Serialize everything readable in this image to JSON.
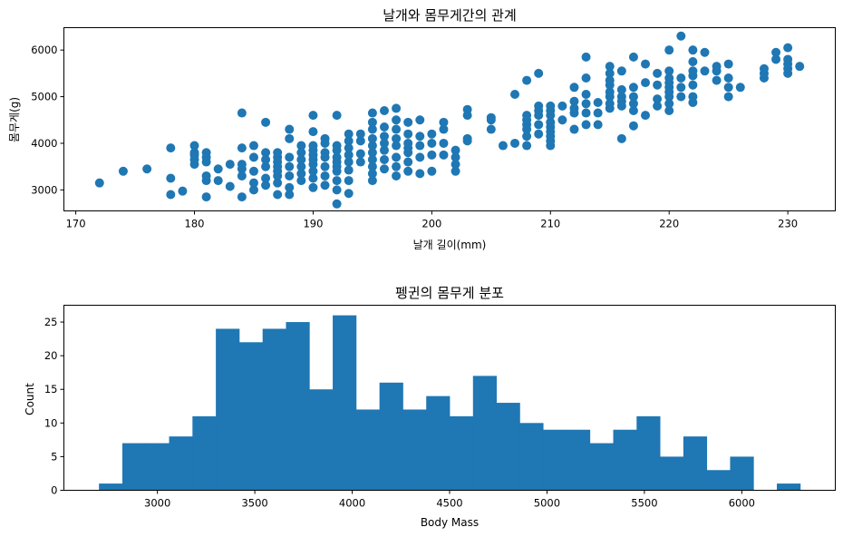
{
  "chart_data": [
    {
      "type": "scatter",
      "title": "날개와 몸무게간의 관계",
      "xlabel": "날개 길이(mm)",
      "ylabel": "몸무게(g)",
      "xlim": [
        169,
        234
      ],
      "ylim": [
        2550,
        6480
      ],
      "xticks": [
        170,
        180,
        190,
        200,
        210,
        220,
        230
      ],
      "yticks": [
        3000,
        4000,
        5000,
        6000
      ],
      "grid": false,
      "color": "#1f77b4",
      "points": [
        [
          172,
          3150
        ],
        [
          174,
          3400
        ],
        [
          176,
          3450
        ],
        [
          178,
          2900
        ],
        [
          178,
          3250
        ],
        [
          178,
          3900
        ],
        [
          179,
          2975
        ],
        [
          180,
          3550
        ],
        [
          180,
          3650
        ],
        [
          180,
          3750
        ],
        [
          180,
          3800
        ],
        [
          180,
          3950
        ],
        [
          181,
          2850
        ],
        [
          181,
          3200
        ],
        [
          181,
          3300
        ],
        [
          181,
          3600
        ],
        [
          181,
          3700
        ],
        [
          181,
          3800
        ],
        [
          182,
          3200
        ],
        [
          182,
          3450
        ],
        [
          183,
          3075
        ],
        [
          183,
          3550
        ],
        [
          184,
          2850
        ],
        [
          184,
          3300
        ],
        [
          184,
          3450
        ],
        [
          184,
          3550
        ],
        [
          184,
          3900
        ],
        [
          184,
          4650
        ],
        [
          185,
          3000
        ],
        [
          185,
          3150
        ],
        [
          185,
          3400
        ],
        [
          185,
          3700
        ],
        [
          185,
          3950
        ],
        [
          186,
          3100
        ],
        [
          186,
          3250
        ],
        [
          186,
          3500
        ],
        [
          186,
          3650
        ],
        [
          186,
          3800
        ],
        [
          186,
          4450
        ],
        [
          187,
          2900
        ],
        [
          187,
          3150
        ],
        [
          187,
          3300
        ],
        [
          187,
          3400
        ],
        [
          187,
          3500
        ],
        [
          187,
          3600
        ],
        [
          187,
          3700
        ],
        [
          187,
          3800
        ],
        [
          188,
          2900
        ],
        [
          188,
          3050
        ],
        [
          188,
          3300
        ],
        [
          188,
          3500
        ],
        [
          188,
          3700
        ],
        [
          188,
          4100
        ],
        [
          188,
          4300
        ],
        [
          189,
          3200
        ],
        [
          189,
          3350
        ],
        [
          189,
          3500
        ],
        [
          189,
          3650
        ],
        [
          189,
          3800
        ],
        [
          189,
          3950
        ],
        [
          190,
          3050
        ],
        [
          190,
          3250
        ],
        [
          190,
          3400
        ],
        [
          190,
          3550
        ],
        [
          190,
          3650
        ],
        [
          190,
          3750
        ],
        [
          190,
          3850
        ],
        [
          190,
          3950
        ],
        [
          190,
          4250
        ],
        [
          190,
          4600
        ],
        [
          191,
          3100
        ],
        [
          191,
          3300
        ],
        [
          191,
          3500
        ],
        [
          191,
          3700
        ],
        [
          191,
          3800
        ],
        [
          191,
          4000
        ],
        [
          191,
          4100
        ],
        [
          192,
          2700
        ],
        [
          192,
          3000
        ],
        [
          192,
          3200
        ],
        [
          192,
          3400
        ],
        [
          192,
          3500
        ],
        [
          192,
          3600
        ],
        [
          192,
          3700
        ],
        [
          192,
          3850
        ],
        [
          192,
          3950
        ],
        [
          192,
          4600
        ],
        [
          193,
          2925
        ],
        [
          193,
          3200
        ],
        [
          193,
          3425
        ],
        [
          193,
          3600
        ],
        [
          193,
          3750
        ],
        [
          193,
          3900
        ],
        [
          193,
          4050
        ],
        [
          193,
          4200
        ],
        [
          194,
          3600
        ],
        [
          194,
          3775
        ],
        [
          194,
          4050
        ],
        [
          194,
          4200
        ],
        [
          195,
          3200
        ],
        [
          195,
          3350
        ],
        [
          195,
          3500
        ],
        [
          195,
          3650
        ],
        [
          195,
          3800
        ],
        [
          195,
          3950
        ],
        [
          195,
          4100
        ],
        [
          195,
          4300
        ],
        [
          195,
          4450
        ],
        [
          195,
          4650
        ],
        [
          196,
          3450
        ],
        [
          196,
          3650
        ],
        [
          196,
          3850
        ],
        [
          196,
          4000
        ],
        [
          196,
          4150
        ],
        [
          196,
          4350
        ],
        [
          196,
          4700
        ],
        [
          197,
          3300
        ],
        [
          197,
          3500
        ],
        [
          197,
          3700
        ],
        [
          197,
          3950
        ],
        [
          197,
          4100
        ],
        [
          197,
          4300
        ],
        [
          197,
          4500
        ],
        [
          197,
          4750
        ],
        [
          198,
          3400
        ],
        [
          198,
          3600
        ],
        [
          198,
          3800
        ],
        [
          198,
          3900
        ],
        [
          198,
          4000
        ],
        [
          198,
          4200
        ],
        [
          198,
          4450
        ],
        [
          199,
          3350
        ],
        [
          199,
          3700
        ],
        [
          199,
          3950
        ],
        [
          199,
          4150
        ],
        [
          199,
          4500
        ],
        [
          200,
          3400
        ],
        [
          200,
          3750
        ],
        [
          200,
          4000
        ],
        [
          200,
          4200
        ],
        [
          201,
          3750
        ],
        [
          201,
          4000
        ],
        [
          201,
          4300
        ],
        [
          201,
          4450
        ],
        [
          202,
          3400
        ],
        [
          202,
          3550
        ],
        [
          202,
          3700
        ],
        [
          202,
          3850
        ],
        [
          203,
          4050
        ],
        [
          203,
          4100
        ],
        [
          203,
          4600
        ],
        [
          203,
          4725
        ],
        [
          205,
          4300
        ],
        [
          205,
          4500
        ],
        [
          205,
          4550
        ],
        [
          206,
          3950
        ],
        [
          207,
          4000
        ],
        [
          207,
          5050
        ],
        [
          208,
          3950
        ],
        [
          208,
          4150
        ],
        [
          208,
          4300
        ],
        [
          208,
          4400
        ],
        [
          208,
          4500
        ],
        [
          208,
          4600
        ],
        [
          208,
          5350
        ],
        [
          209,
          4200
        ],
        [
          209,
          4400
        ],
        [
          209,
          4600
        ],
        [
          209,
          4700
        ],
        [
          209,
          4800
        ],
        [
          209,
          5500
        ],
        [
          210,
          3950
        ],
        [
          210,
          4050
        ],
        [
          210,
          4150
        ],
        [
          210,
          4250
        ],
        [
          210,
          4350
        ],
        [
          210,
          4450
        ],
        [
          210,
          4600
        ],
        [
          210,
          4700
        ],
        [
          210,
          4800
        ],
        [
          211,
          4500
        ],
        [
          211,
          4800
        ],
        [
          212,
          4300
        ],
        [
          212,
          4650
        ],
        [
          212,
          4750
        ],
        [
          212,
          4900
        ],
        [
          212,
          5200
        ],
        [
          213,
          4400
        ],
        [
          213,
          4650
        ],
        [
          213,
          4850
        ],
        [
          213,
          5050
        ],
        [
          213,
          5400
        ],
        [
          213,
          5850
        ],
        [
          214,
          4400
        ],
        [
          214,
          4650
        ],
        [
          214,
          4875
        ],
        [
          215,
          4750
        ],
        [
          215,
          4850
        ],
        [
          215,
          5000
        ],
        [
          215,
          5100
        ],
        [
          215,
          5250
        ],
        [
          215,
          5350
        ],
        [
          215,
          5500
        ],
        [
          215,
          5650
        ],
        [
          216,
          4100
        ],
        [
          216,
          4800
        ],
        [
          216,
          4900
        ],
        [
          216,
          5000
        ],
        [
          216,
          5150
        ],
        [
          216,
          5550
        ],
        [
          217,
          4375
        ],
        [
          217,
          4700
        ],
        [
          217,
          4850
        ],
        [
          217,
          5000
        ],
        [
          217,
          5200
        ],
        [
          217,
          5850
        ],
        [
          218,
          4600
        ],
        [
          218,
          5300
        ],
        [
          218,
          5700
        ],
        [
          219,
          4800
        ],
        [
          219,
          4950
        ],
        [
          219,
          5250
        ],
        [
          219,
          5500
        ],
        [
          220,
          4700
        ],
        [
          220,
          4850
        ],
        [
          220,
          5000
        ],
        [
          220,
          5100
        ],
        [
          220,
          5200
        ],
        [
          220,
          5300
        ],
        [
          220,
          5400
        ],
        [
          220,
          5550
        ],
        [
          220,
          6000
        ],
        [
          221,
          5000
        ],
        [
          221,
          5200
        ],
        [
          221,
          5400
        ],
        [
          221,
          6300
        ],
        [
          222,
          4875
        ],
        [
          222,
          5000
        ],
        [
          222,
          5250
        ],
        [
          222,
          5450
        ],
        [
          222,
          5550
        ],
        [
          222,
          5750
        ],
        [
          222,
          6000
        ],
        [
          223,
          5550
        ],
        [
          223,
          5950
        ],
        [
          224,
          5350
        ],
        [
          224,
          5550
        ],
        [
          224,
          5650
        ],
        [
          225,
          5000
        ],
        [
          225,
          5200
        ],
        [
          225,
          5400
        ],
        [
          225,
          5700
        ],
        [
          226,
          5200
        ],
        [
          228,
          5400
        ],
        [
          228,
          5500
        ],
        [
          228,
          5600
        ],
        [
          229,
          5800
        ],
        [
          229,
          5950
        ],
        [
          230,
          5500
        ],
        [
          230,
          5600
        ],
        [
          230,
          5700
        ],
        [
          230,
          5800
        ],
        [
          230,
          6050
        ],
        [
          231,
          5650
        ]
      ]
    },
    {
      "type": "bar",
      "subtype": "histogram",
      "title": "펭귄의 몸무게 분포",
      "xlabel": "Body Mass",
      "ylabel": "Count",
      "xlim": [
        2520,
        6480
      ],
      "ylim": [
        0,
        27.5
      ],
      "xticks": [
        3000,
        3500,
        4000,
        4500,
        5000,
        5500,
        6000
      ],
      "yticks": [
        0,
        5,
        10,
        15,
        20,
        25
      ],
      "grid": false,
      "color": "#1f77b4",
      "bin_start": 2700,
      "bin_width": 120,
      "counts": [
        1,
        7,
        7,
        8,
        11,
        24,
        22,
        24,
        25,
        15,
        26,
        12,
        16,
        12,
        14,
        11,
        17,
        13,
        10,
        9,
        9,
        7,
        9,
        11,
        5,
        8,
        3,
        5,
        0,
        1
      ]
    }
  ]
}
